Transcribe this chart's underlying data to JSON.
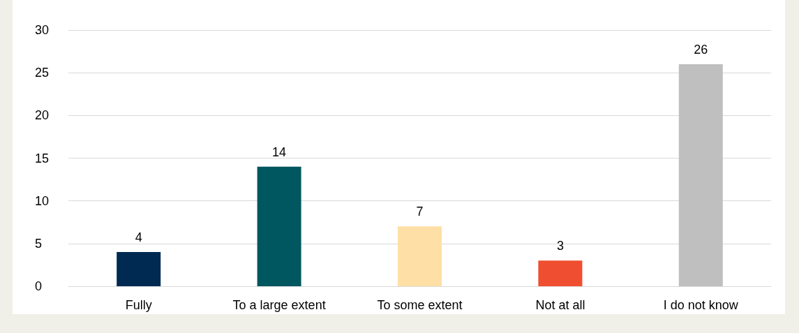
{
  "chart_data": {
    "type": "bar",
    "categories": [
      "Fully",
      "To a large extent",
      "To some extent",
      "Not at all",
      "I do not know"
    ],
    "values": [
      4,
      14,
      7,
      3,
      26
    ],
    "colors": [
      "#002a52",
      "#00575f",
      "#fee0a6",
      "#f04e30",
      "#bfbfbf"
    ],
    "ylim": [
      0,
      30
    ],
    "yticks": [
      0,
      5,
      10,
      15,
      20,
      25,
      30
    ],
    "grid": "y",
    "data_labels": true
  }
}
